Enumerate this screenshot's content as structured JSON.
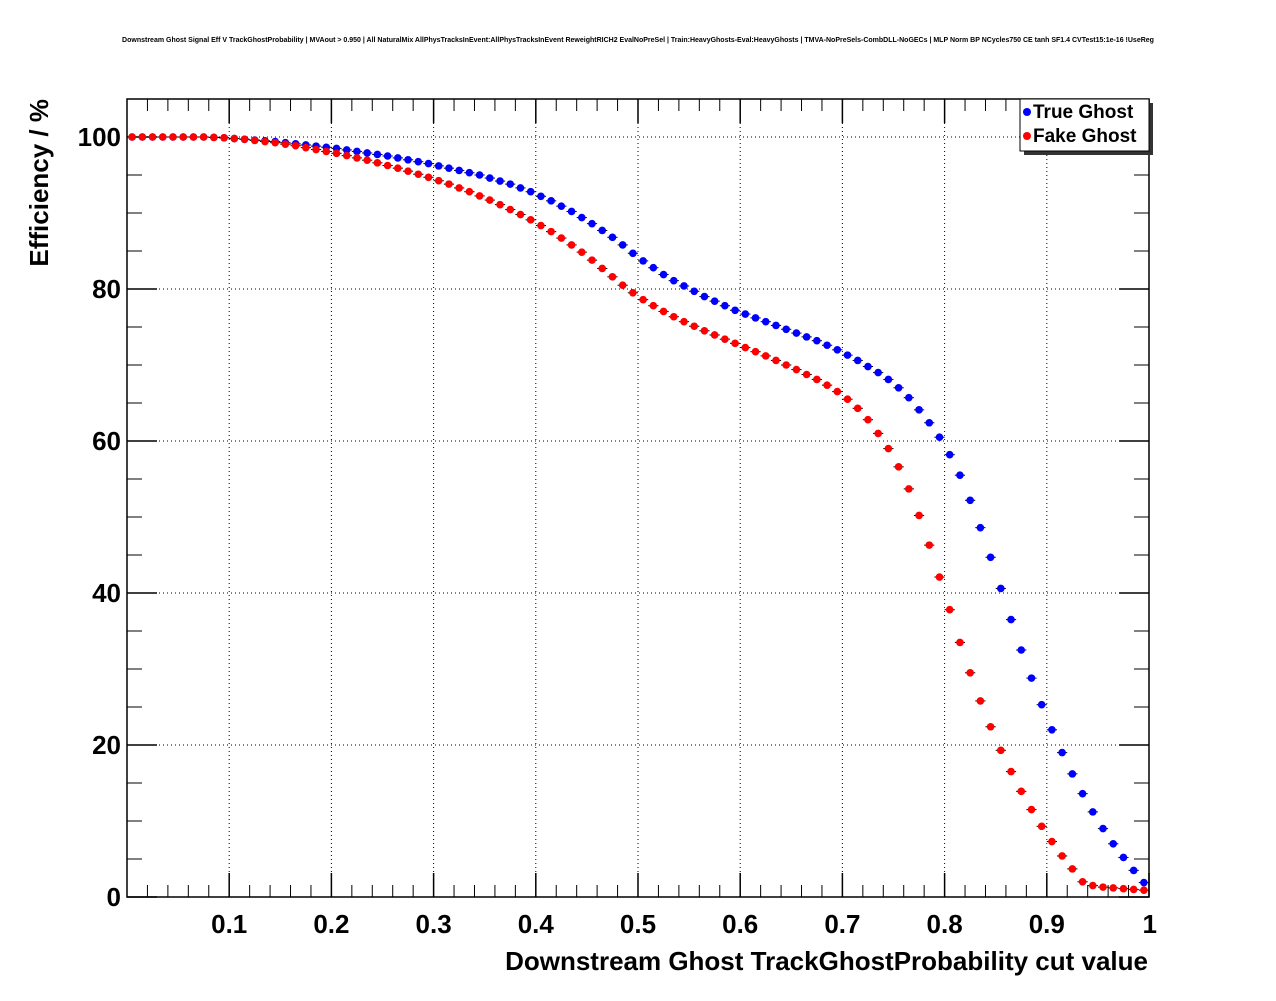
{
  "chart_data": {
    "type": "scatter",
    "title": "Downstream Ghost Signal Eff V TrackGhostProbability | MVAout > 0.950 | All NaturalMix AllPhysTracksInEvent:AllPhysTracksInEvent ReweightRICH2 EvalNoPreSel | Train:HeavyGhosts-Eval:HeavyGhosts | TMVA-NoPreSels-CombDLL-NoGECs | MLP Norm BP NCycles750 CE tanh SF1.4 CVTest15:1e-16 !UseReg",
    "xlabel": "Downstream Ghost TrackGhostProbability cut value",
    "ylabel": "Efficiency / %",
    "xlim": [
      0.0,
      1.0
    ],
    "ylim": [
      0,
      105
    ],
    "grid": true,
    "legend_position": "top-right",
    "x_ticks": [
      {
        "value": 0.1,
        "label": "0.1"
      },
      {
        "value": 0.2,
        "label": "0.2"
      },
      {
        "value": 0.3,
        "label": "0.3"
      },
      {
        "value": 0.4,
        "label": "0.4"
      },
      {
        "value": 0.5,
        "label": "0.5"
      },
      {
        "value": 0.6,
        "label": "0.6"
      },
      {
        "value": 0.7,
        "label": "0.7"
      },
      {
        "value": 0.8,
        "label": "0.8"
      },
      {
        "value": 0.9,
        "label": "0.9"
      },
      {
        "value": 1.0,
        "label": "1"
      }
    ],
    "y_ticks": [
      {
        "value": 0,
        "label": "0"
      },
      {
        "value": 20,
        "label": "20"
      },
      {
        "value": 40,
        "label": "40"
      },
      {
        "value": 60,
        "label": "60"
      },
      {
        "value": 80,
        "label": "80"
      },
      {
        "value": 100,
        "label": "100"
      }
    ],
    "x": [
      0.005,
      0.015,
      0.025,
      0.035,
      0.045,
      0.055,
      0.065,
      0.075,
      0.085,
      0.095,
      0.105,
      0.115,
      0.125,
      0.135,
      0.145,
      0.155,
      0.165,
      0.175,
      0.185,
      0.195,
      0.205,
      0.215,
      0.225,
      0.235,
      0.245,
      0.255,
      0.265,
      0.275,
      0.285,
      0.295,
      0.305,
      0.315,
      0.325,
      0.335,
      0.345,
      0.355,
      0.365,
      0.375,
      0.385,
      0.395,
      0.405,
      0.415,
      0.425,
      0.435,
      0.445,
      0.455,
      0.465,
      0.475,
      0.485,
      0.495,
      0.505,
      0.515,
      0.525,
      0.535,
      0.545,
      0.555,
      0.565,
      0.575,
      0.585,
      0.595,
      0.605,
      0.615,
      0.625,
      0.635,
      0.645,
      0.655,
      0.665,
      0.675,
      0.685,
      0.695,
      0.705,
      0.715,
      0.725,
      0.735,
      0.745,
      0.755,
      0.765,
      0.775,
      0.785,
      0.795,
      0.805,
      0.815,
      0.825,
      0.835,
      0.845,
      0.855,
      0.865,
      0.875,
      0.885,
      0.895,
      0.905,
      0.915,
      0.925,
      0.935,
      0.945,
      0.955,
      0.965,
      0.975,
      0.985,
      0.995
    ],
    "series": [
      {
        "name": "True Ghost",
        "color": "#0000ff",
        "values": [
          100.0,
          100.0,
          100.0,
          100.0,
          100.0,
          100.0,
          100.0,
          100.0,
          99.95,
          99.9,
          99.8,
          99.7,
          99.6,
          99.5,
          99.4,
          99.25,
          99.1,
          98.95,
          98.8,
          98.65,
          98.5,
          98.3,
          98.1,
          97.9,
          97.7,
          97.5,
          97.25,
          97.0,
          96.75,
          96.5,
          96.2,
          95.9,
          95.6,
          95.3,
          95.0,
          94.6,
          94.2,
          93.8,
          93.3,
          92.8,
          92.2,
          91.6,
          90.9,
          90.2,
          89.4,
          88.6,
          87.7,
          86.8,
          85.8,
          84.7,
          83.7,
          82.8,
          81.9,
          81.1,
          80.4,
          79.7,
          79.0,
          78.4,
          77.8,
          77.2,
          76.7,
          76.2,
          75.7,
          75.2,
          74.7,
          74.2,
          73.7,
          73.2,
          72.6,
          72.0,
          71.3,
          70.6,
          69.8,
          69.0,
          68.1,
          67.0,
          65.7,
          64.1,
          62.4,
          60.5,
          58.2,
          55.5,
          52.2,
          48.6,
          44.7,
          40.6,
          36.5,
          32.5,
          28.8,
          25.3,
          22.0,
          19.0,
          16.2,
          13.6,
          11.2,
          9.0,
          7.0,
          5.2,
          3.5,
          1.9
        ]
      },
      {
        "name": "Fake Ghost",
        "color": "#ff0000",
        "values": [
          100.0,
          100.0,
          100.0,
          100.0,
          100.0,
          100.0,
          100.0,
          100.0,
          99.95,
          99.9,
          99.8,
          99.7,
          99.55,
          99.4,
          99.25,
          99.05,
          98.85,
          98.6,
          98.35,
          98.1,
          97.85,
          97.55,
          97.25,
          96.95,
          96.6,
          96.25,
          95.9,
          95.5,
          95.1,
          94.7,
          94.25,
          93.8,
          93.3,
          92.8,
          92.25,
          91.7,
          91.1,
          90.45,
          89.8,
          89.1,
          88.35,
          87.55,
          86.7,
          85.8,
          84.85,
          83.8,
          82.7,
          81.6,
          80.5,
          79.5,
          78.6,
          77.8,
          77.05,
          76.35,
          75.7,
          75.1,
          74.5,
          73.95,
          73.4,
          72.85,
          72.3,
          71.75,
          71.2,
          70.6,
          70.0,
          69.4,
          68.75,
          68.1,
          67.35,
          66.5,
          65.5,
          64.3,
          62.8,
          61.0,
          59.0,
          56.6,
          53.7,
          50.2,
          46.3,
          42.1,
          37.8,
          33.5,
          29.5,
          25.8,
          22.4,
          19.3,
          16.5,
          13.9,
          11.5,
          9.3,
          7.3,
          5.4,
          3.7,
          2.0,
          1.5,
          1.3,
          1.2,
          1.1,
          1.0,
          0.9
        ]
      }
    ]
  }
}
